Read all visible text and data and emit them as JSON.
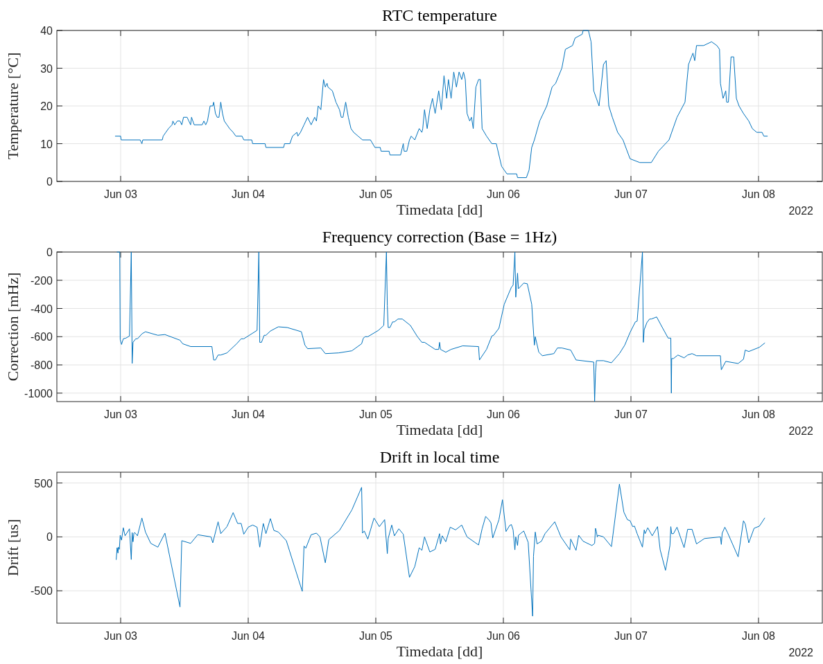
{
  "chart_data": [
    {
      "type": "line",
      "title": "RTC temperature",
      "xlabel": "Timedata [dd]",
      "ylabel": "Temperature [°C]",
      "annotations": [
        "2022"
      ],
      "grid": true,
      "color": "#0072bd",
      "xlim": [
        "2022-06-02T12:00",
        "2022-06-08T12:00"
      ],
      "xticks": [
        {
          "value": "2022-06-03",
          "label": "Jun 03"
        },
        {
          "value": "2022-06-04",
          "label": "Jun 04"
        },
        {
          "value": "2022-06-05",
          "label": "Jun 05"
        },
        {
          "value": "2022-06-06",
          "label": "Jun 06"
        },
        {
          "value": "2022-06-07",
          "label": "Jun 07"
        },
        {
          "value": "2022-06-08",
          "label": "Jun 08"
        }
      ],
      "ylim": [
        0,
        40
      ],
      "yticks": [
        0,
        10,
        20,
        30,
        40
      ],
      "x": [
        "2022-06-02T23:00",
        "2022-06-03T00:00",
        "2022-06-03T00:06",
        "2022-06-03T03:40",
        "2022-06-03T04:00",
        "2022-06-03T04:10",
        "2022-06-03T07:50",
        "2022-06-03T08:00",
        "2022-06-03T08:30",
        "2022-06-03T09:00",
        "2022-06-03T09:40",
        "2022-06-03T09:50",
        "2022-06-03T10:10",
        "2022-06-03T10:40",
        "2022-06-03T11:10",
        "2022-06-03T11:30",
        "2022-06-03T11:50",
        "2022-06-03T12:30",
        "2022-06-03T12:50",
        "2022-06-03T13:10",
        "2022-06-03T13:20",
        "2022-06-03T13:50",
        "2022-06-03T15:20",
        "2022-06-03T15:40",
        "2022-06-03T16:00",
        "2022-06-03T16:20",
        "2022-06-03T16:50",
        "2022-06-03T17:20",
        "2022-06-03T17:30",
        "2022-06-03T17:50",
        "2022-06-03T18:10",
        "2022-06-03T18:30",
        "2022-06-03T18:50",
        "2022-06-03T19:10",
        "2022-06-03T19:30",
        "2022-06-03T20:00",
        "2022-06-03T20:30",
        "2022-06-03T21:10",
        "2022-06-03T21:40",
        "2022-06-03T22:50",
        "2022-06-03T23:10",
        "2022-06-04T00:40",
        "2022-06-04T00:50",
        "2022-06-04T03:10",
        "2022-06-04T03:20",
        "2022-06-04T06:40",
        "2022-06-04T06:50",
        "2022-06-04T07:50",
        "2022-06-04T08:20",
        "2022-06-04T09:10",
        "2022-06-04T09:20",
        "2022-06-04T09:50",
        "2022-06-04T10:30",
        "2022-06-04T11:10",
        "2022-06-04T11:50",
        "2022-06-04T12:30",
        "2022-06-04T12:50",
        "2022-06-04T13:10",
        "2022-06-04T13:40",
        "2022-06-04T14:10",
        "2022-06-04T14:30",
        "2022-06-04T14:50",
        "2022-06-04T15:00",
        "2022-06-04T15:50",
        "2022-06-04T16:30",
        "2022-06-04T17:10",
        "2022-06-04T17:30",
        "2022-06-04T17:50",
        "2022-06-04T18:20",
        "2022-06-04T18:50",
        "2022-06-04T19:20",
        "2022-06-04T19:50",
        "2022-06-04T20:40",
        "2022-06-04T21:30",
        "2022-06-04T23:00",
        "2022-06-04T23:50",
        "2022-06-05T00:50",
        "2022-06-05T01:00",
        "2022-06-05T02:30",
        "2022-06-05T02:40",
        "2022-06-05T04:40",
        "2022-06-05T05:10",
        "2022-06-05T05:20",
        "2022-06-05T05:50",
        "2022-06-05T06:20",
        "2022-06-05T06:40",
        "2022-06-05T07:20",
        "2022-06-05T08:10",
        "2022-06-05T08:40",
        "2022-06-05T08:50",
        "2022-06-05T09:10",
        "2022-06-05T09:40",
        "2022-06-05T10:10",
        "2022-06-05T10:40",
        "2022-06-05T11:10",
        "2022-06-05T11:50",
        "2022-06-05T12:20",
        "2022-06-05T12:50",
        "2022-06-05T13:20",
        "2022-06-05T13:40",
        "2022-06-05T14:10",
        "2022-06-05T14:40",
        "2022-06-05T15:10",
        "2022-06-05T15:40",
        "2022-06-05T16:10",
        "2022-06-05T16:30",
        "2022-06-05T16:50",
        "2022-06-05T17:10",
        "2022-06-05T17:40",
        "2022-06-05T18:00",
        "2022-06-05T18:20",
        "2022-06-05T18:50",
        "2022-06-05T19:20",
        "2022-06-05T19:40",
        "2022-06-05T20:00",
        "2022-06-05T20:50",
        "2022-06-05T21:50",
        "2022-06-05T22:40",
        "2022-06-05T23:40",
        "2022-06-06T00:40",
        "2022-06-06T02:30",
        "2022-06-06T02:40",
        "2022-06-06T04:20",
        "2022-06-06T04:50",
        "2022-06-06T05:20",
        "2022-06-06T05:50",
        "2022-06-06T06:50",
        "2022-06-06T08:10",
        "2022-06-06T09:10",
        "2022-06-06T09:50",
        "2022-06-06T11:00",
        "2022-06-06T11:40",
        "2022-06-06T13:00",
        "2022-06-06T13:30",
        "2022-06-06T14:50",
        "2022-06-06T15:00",
        "2022-06-06T16:00",
        "2022-06-06T16:30",
        "2022-06-06T17:00",
        "2022-06-06T17:30",
        "2022-06-06T18:00",
        "2022-06-06T18:50",
        "2022-06-06T19:20",
        "2022-06-06T19:50",
        "2022-06-06T20:30",
        "2022-06-06T21:30",
        "2022-06-06T22:30",
        "2022-06-06T23:50",
        "2022-06-07T01:40",
        "2022-06-07T03:50",
        "2022-06-07T05:10",
        "2022-06-07T07:10",
        "2022-06-07T08:40",
        "2022-06-07T10:10",
        "2022-06-07T10:50",
        "2022-06-07T11:40",
        "2022-06-07T12:00",
        "2022-06-07T12:20",
        "2022-06-07T13:40",
        "2022-06-07T15:10",
        "2022-06-07T16:10",
        "2022-06-07T16:40",
        "2022-06-07T16:50",
        "2022-06-07T17:20",
        "2022-06-07T17:50",
        "2022-06-07T18:00",
        "2022-06-07T18:20",
        "2022-06-07T18:50",
        "2022-06-07T19:20",
        "2022-06-07T19:50",
        "2022-06-07T20:20",
        "2022-06-07T21:10",
        "2022-06-07T22:10",
        "2022-06-07T22:50",
        "2022-06-07T23:40",
        "2022-06-08T00:40",
        "2022-06-08T01:00",
        "2022-06-08T01:40"
      ],
      "values": [
        12,
        12,
        11,
        11,
        10,
        11,
        11,
        12,
        13,
        14,
        15,
        16,
        15,
        16,
        16,
        15,
        17,
        17,
        16,
        15,
        17,
        15,
        15,
        16,
        15,
        16,
        20,
        20,
        21,
        18,
        17,
        17,
        21,
        18,
        16,
        15,
        14,
        13,
        12,
        12,
        11,
        11,
        10,
        10,
        9,
        9,
        10,
        10,
        12,
        13,
        12,
        13,
        15,
        17,
        15,
        17,
        16,
        20,
        19,
        27,
        25,
        26,
        25,
        24,
        21,
        19,
        17,
        17,
        21,
        17,
        14,
        13,
        12,
        11,
        11,
        9,
        9,
        8,
        8,
        7,
        7,
        10,
        8,
        8,
        11,
        12,
        11,
        14,
        13,
        14,
        19,
        14,
        19,
        22,
        18,
        24,
        19,
        28,
        22,
        27,
        22,
        29,
        25,
        29,
        27,
        29,
        27,
        18,
        16,
        17,
        14,
        25,
        27,
        27,
        14,
        12,
        10,
        10,
        4,
        2,
        2,
        1,
        1,
        3,
        9,
        11,
        16,
        20,
        25,
        26,
        30,
        35,
        36,
        38,
        39,
        40,
        40,
        37,
        24,
        22,
        20,
        31,
        32,
        20,
        17,
        13,
        11,
        6,
        5,
        5,
        8,
        11,
        17,
        21,
        31,
        34,
        32,
        36,
        36,
        37,
        36,
        35,
        26,
        22,
        24,
        21,
        21,
        33,
        33,
        22,
        20,
        18,
        16,
        14,
        13,
        13,
        12,
        12
      ]
    },
    {
      "type": "line",
      "title": "Frequency correction (Base = 1Hz)",
      "xlabel": "Timedata [dd]",
      "ylabel": "Correction [mHz]",
      "annotations": [
        "2022"
      ],
      "grid": true,
      "color": "#0072bd",
      "xlim": [
        "2022-06-02T12:00",
        "2022-06-08T12:00"
      ],
      "xticks": [
        {
          "value": "2022-06-03",
          "label": "Jun 03"
        },
        {
          "value": "2022-06-04",
          "label": "Jun 04"
        },
        {
          "value": "2022-06-05",
          "label": "Jun 05"
        },
        {
          "value": "2022-06-06",
          "label": "Jun 06"
        },
        {
          "value": "2022-06-07",
          "label": "Jun 07"
        },
        {
          "value": "2022-06-08",
          "label": "Jun 08"
        }
      ],
      "ylim": [
        -1060,
        0
      ],
      "yticks": [
        -1000,
        -800,
        -600,
        -400,
        -200,
        0
      ],
      "x": [
        "2022-06-02T23:20",
        "2022-06-02T23:50",
        "2022-06-02T23:55",
        "2022-06-03T00:10",
        "2022-06-03T00:30",
        "2022-06-03T01:00",
        "2022-06-03T01:40",
        "2022-06-03T02:00",
        "2022-06-03T02:10",
        "2022-06-03T02:20",
        "2022-06-03T02:50",
        "2022-06-03T03:10",
        "2022-06-03T04:00",
        "2022-06-03T04:40",
        "2022-06-03T07:00",
        "2022-06-03T08:20",
        "2022-06-03T11:10",
        "2022-06-03T11:40",
        "2022-06-03T13:10",
        "2022-06-03T17:10",
        "2022-06-03T17:30",
        "2022-06-03T17:50",
        "2022-06-03T18:20",
        "2022-06-03T18:50",
        "2022-06-03T20:00",
        "2022-06-03T21:50",
        "2022-06-03T22:40",
        "2022-06-03T23:10",
        "2022-06-04T01:40",
        "2022-06-04T02:00",
        "2022-06-04T02:10",
        "2022-06-04T02:30",
        "2022-06-04T03:00",
        "2022-06-04T03:20",
        "2022-06-04T04:10",
        "2022-06-04T05:40",
        "2022-06-04T07:20",
        "2022-06-04T10:00",
        "2022-06-04T10:40",
        "2022-06-04T11:10",
        "2022-06-04T13:40",
        "2022-06-04T14:30",
        "2022-06-04T17:00",
        "2022-06-04T19:30",
        "2022-06-04T21:20",
        "2022-06-04T21:40",
        "2022-06-04T22:00",
        "2022-06-04T22:30",
        "2022-06-05T00:30",
        "2022-06-05T01:30",
        "2022-06-05T02:00",
        "2022-06-05T02:10",
        "2022-06-05T02:20",
        "2022-06-05T02:40",
        "2022-06-05T03:10",
        "2022-06-05T03:30",
        "2022-06-05T04:10",
        "2022-06-05T05:00",
        "2022-06-05T06:30",
        "2022-06-05T07:50",
        "2022-06-05T08:40",
        "2022-06-05T09:10",
        "2022-06-05T11:10",
        "2022-06-05T11:50",
        "2022-06-05T12:00",
        "2022-06-05T12:10",
        "2022-06-05T13:10",
        "2022-06-05T14:10",
        "2022-06-05T16:20",
        "2022-06-05T19:20",
        "2022-06-05T19:30",
        "2022-06-05T20:50",
        "2022-06-05T21:50",
        "2022-06-05T22:10",
        "2022-06-05T23:10",
        "2022-06-06T00:10",
        "2022-06-06T01:30",
        "2022-06-06T01:50",
        "2022-06-06T02:10",
        "2022-06-06T02:20",
        "2022-06-06T02:40",
        "2022-06-06T02:50",
        "2022-06-06T03:50",
        "2022-06-06T04:30",
        "2022-06-06T05:20",
        "2022-06-06T05:50",
        "2022-06-06T06:00",
        "2022-06-06T06:40",
        "2022-06-06T07:20",
        "2022-06-06T09:30",
        "2022-06-06T10:10",
        "2022-06-06T11:00",
        "2022-06-06T12:40",
        "2022-06-06T13:40",
        "2022-06-06T17:00",
        "2022-06-06T17:10",
        "2022-06-06T17:20",
        "2022-06-06T17:30",
        "2022-06-06T18:50",
        "2022-06-06T20:20",
        "2022-06-06T21:50",
        "2022-06-06T22:50",
        "2022-06-06T23:50",
        "2022-06-07T00:50",
        "2022-06-07T01:10",
        "2022-06-07T02:10",
        "2022-06-07T02:20",
        "2022-06-07T02:30",
        "2022-06-07T03:00",
        "2022-06-07T03:30",
        "2022-06-07T03:50",
        "2022-06-07T04:50",
        "2022-06-07T05:50",
        "2022-06-07T07:00",
        "2022-06-07T07:30",
        "2022-06-07T07:36",
        "2022-06-07T07:40",
        "2022-06-07T08:00",
        "2022-06-07T08:50",
        "2022-06-07T10:00",
        "2022-06-07T10:40",
        "2022-06-07T11:30",
        "2022-06-07T12:20",
        "2022-06-07T16:50",
        "2022-06-07T17:00",
        "2022-06-07T17:50",
        "2022-06-07T20:10",
        "2022-06-07T21:10",
        "2022-06-07T21:30",
        "2022-06-07T22:10",
        "2022-06-08T00:10",
        "2022-06-08T01:10"
      ],
      "values": [
        0,
        0,
        -620,
        -655,
        -615,
        -610,
        -595,
        0,
        -790,
        -640,
        -615,
        -615,
        -580,
        -565,
        -590,
        -585,
        -625,
        -650,
        -670,
        -670,
        -765,
        -765,
        -730,
        -730,
        -715,
        -650,
        -615,
        -615,
        -555,
        0,
        -640,
        -640,
        -590,
        -590,
        -560,
        -530,
        -535,
        -565,
        -660,
        -685,
        -680,
        -720,
        -715,
        -700,
        -650,
        -610,
        -600,
        -600,
        -555,
        -520,
        0,
        -380,
        -535,
        -535,
        -495,
        -495,
        -475,
        -475,
        -520,
        -600,
        -640,
        -640,
        -690,
        -690,
        -640,
        -690,
        -710,
        -690,
        -665,
        -670,
        -765,
        -690,
        -595,
        -590,
        -540,
        -370,
        -250,
        -235,
        0,
        -320,
        -150,
        -260,
        -220,
        -225,
        -370,
        -660,
        -600,
        -710,
        -735,
        -720,
        -680,
        -680,
        -695,
        -765,
        -780,
        -1060,
        -855,
        -770,
        -770,
        -785,
        -720,
        -660,
        -570,
        -495,
        -490,
        0,
        -640,
        -550,
        -500,
        -475,
        -475,
        -460,
        -530,
        -610,
        -610,
        -1000,
        -755,
        -755,
        -730,
        -750,
        -730,
        -720,
        -735,
        -735,
        -835,
        -775,
        -790,
        -760,
        -695,
        -705,
        -675,
        -645
      ]
    },
    {
      "type": "line",
      "title": "Drift in local time",
      "xlabel": "Timedata [dd]",
      "ylabel": "Drift [us]",
      "annotations": [
        "2022"
      ],
      "grid": true,
      "color": "#0072bd",
      "xlim": [
        "2022-06-02T12:00",
        "2022-06-08T12:00"
      ],
      "xticks": [
        {
          "value": "2022-06-03",
          "label": "Jun 03"
        },
        {
          "value": "2022-06-04",
          "label": "Jun 04"
        },
        {
          "value": "2022-06-05",
          "label": "Jun 05"
        },
        {
          "value": "2022-06-06",
          "label": "Jun 06"
        },
        {
          "value": "2022-06-07",
          "label": "Jun 07"
        },
        {
          "value": "2022-06-08",
          "label": "Jun 08"
        }
      ],
      "ylim": [
        -800,
        600
      ],
      "yticks": [
        -500,
        0,
        500
      ],
      "x": [
        "2022-06-02T23:10",
        "2022-06-02T23:20",
        "2022-06-02T23:30",
        "2022-06-02T23:35",
        "2022-06-02T23:45",
        "2022-06-02T23:55",
        "2022-06-03T00:10",
        "2022-06-03T00:30",
        "2022-06-03T00:50",
        "2022-06-03T01:40",
        "2022-06-03T02:00",
        "2022-06-03T02:10",
        "2022-06-03T02:20",
        "2022-06-03T02:30",
        "2022-06-03T02:40",
        "2022-06-03T03:10",
        "2022-06-03T04:00",
        "2022-06-03T04:40",
        "2022-06-03T05:40",
        "2022-06-03T07:00",
        "2022-06-03T08:20",
        "2022-06-03T11:10",
        "2022-06-03T11:30",
        "2022-06-03T13:10",
        "2022-06-03T14:30",
        "2022-06-03T17:00",
        "2022-06-03T17:20",
        "2022-06-03T18:20",
        "2022-06-03T18:50",
        "2022-06-03T20:00",
        "2022-06-03T21:10",
        "2022-06-03T22:00",
        "2022-06-03T22:40",
        "2022-06-03T23:10",
        "2022-06-04T00:00",
        "2022-06-04T00:50",
        "2022-06-04T01:40",
        "2022-06-04T02:10",
        "2022-06-04T02:50",
        "2022-06-04T03:20",
        "2022-06-04T04:10",
        "2022-06-04T04:50",
        "2022-06-04T05:40",
        "2022-06-04T07:10",
        "2022-06-04T10:10",
        "2022-06-04T10:30",
        "2022-06-04T10:50",
        "2022-06-04T11:50",
        "2022-06-04T12:50",
        "2022-06-04T13:30",
        "2022-06-04T14:30",
        "2022-06-04T15:10",
        "2022-06-04T17:10",
        "2022-06-04T19:30",
        "2022-06-04T21:20",
        "2022-06-04T21:30",
        "2022-06-04T21:50",
        "2022-06-04T22:30",
        "2022-06-04T23:40",
        "2022-06-05T00:40",
        "2022-06-05T01:40",
        "2022-06-05T02:10",
        "2022-06-05T02:20",
        "2022-06-05T03:00",
        "2022-06-05T03:30",
        "2022-06-05T04:20",
        "2022-06-05T05:10",
        "2022-06-05T06:20",
        "2022-06-05T07:20",
        "2022-06-05T08:10",
        "2022-06-05T08:40",
        "2022-06-05T09:10",
        "2022-06-05T10:10",
        "2022-06-05T11:10",
        "2022-06-05T12:00",
        "2022-06-05T12:10",
        "2022-06-05T12:30",
        "2022-06-05T13:10",
        "2022-06-05T14:00",
        "2022-06-05T15:00",
        "2022-06-05T16:10",
        "2022-06-05T17:10",
        "2022-06-05T19:20",
        "2022-06-05T20:00",
        "2022-06-05T20:40",
        "2022-06-05T21:20",
        "2022-06-05T21:40",
        "2022-06-05T22:00",
        "2022-06-05T23:10",
        "2022-06-05T23:50",
        "2022-06-06T00:30",
        "2022-06-06T01:10",
        "2022-06-06T01:30",
        "2022-06-06T01:50",
        "2022-06-06T02:10",
        "2022-06-06T02:20",
        "2022-06-06T02:40",
        "2022-06-06T02:50",
        "2022-06-06T03:50",
        "2022-06-06T04:40",
        "2022-06-06T05:30",
        "2022-06-06T05:40",
        "2022-06-06T06:00",
        "2022-06-06T06:20",
        "2022-06-06T07:10",
        "2022-06-06T07:50",
        "2022-06-06T09:40",
        "2022-06-06T10:50",
        "2022-06-06T12:30",
        "2022-06-06T12:40",
        "2022-06-06T13:40",
        "2022-06-06T14:10",
        "2022-06-06T15:00",
        "2022-06-06T16:40",
        "2022-06-06T17:10",
        "2022-06-06T17:20",
        "2022-06-06T17:30",
        "2022-06-06T17:40",
        "2022-06-06T17:50",
        "2022-06-06T18:50",
        "2022-06-06T20:20",
        "2022-06-06T21:50",
        "2022-06-06T22:40",
        "2022-06-06T23:20",
        "2022-06-06T23:50",
        "2022-06-07T00:20",
        "2022-06-07T00:40",
        "2022-06-07T01:10",
        "2022-06-07T02:10",
        "2022-06-07T02:30",
        "2022-06-07T02:40",
        "2022-06-07T03:10",
        "2022-06-07T04:00",
        "2022-06-07T05:00",
        "2022-06-07T05:30",
        "2022-06-07T06:30",
        "2022-06-07T07:00",
        "2022-06-07T07:20",
        "2022-06-07T07:30",
        "2022-06-07T07:40",
        "2022-06-07T08:00",
        "2022-06-07T08:40",
        "2022-06-07T10:00",
        "2022-06-07T10:40",
        "2022-06-07T11:30",
        "2022-06-07T12:20",
        "2022-06-07T13:50",
        "2022-06-07T16:50",
        "2022-06-07T17:00",
        "2022-06-07T17:10",
        "2022-06-07T17:40",
        "2022-06-07T18:10",
        "2022-06-07T20:10",
        "2022-06-07T21:10",
        "2022-06-07T21:30",
        "2022-06-07T22:10",
        "2022-06-07T23:10",
        "2022-06-08T00:10",
        "2022-06-08T01:10"
      ],
      "values": [
        -210,
        -100,
        -150,
        -95,
        -115,
        15,
        -30,
        85,
        10,
        75,
        -210,
        40,
        -45,
        35,
        40,
        10,
        175,
        45,
        -60,
        -95,
        35,
        -650,
        -35,
        -60,
        20,
        0,
        -55,
        140,
        30,
        95,
        225,
        125,
        125,
        25,
        90,
        110,
        90,
        -95,
        125,
        30,
        170,
        60,
        45,
        -35,
        -505,
        -85,
        -105,
        20,
        35,
        0,
        -240,
        -25,
        60,
        250,
        460,
        35,
        55,
        -20,
        175,
        95,
        160,
        -155,
        -15,
        110,
        10,
        75,
        25,
        -375,
        -275,
        -100,
        -125,
        0,
        -140,
        -115,
        30,
        -65,
        10,
        -45,
        90,
        65,
        110,
        0,
        -75,
        75,
        190,
        155,
        130,
        -10,
        160,
        345,
        50,
        105,
        115,
        65,
        -120,
        0,
        -80,
        15,
        55,
        -50,
        -735,
        -180,
        45,
        -65,
        -40,
        30,
        140,
        0,
        -120,
        -20,
        -125,
        15,
        -40,
        -80,
        -60,
        80,
        50,
        0,
        15,
        0,
        -90,
        490,
        230,
        160,
        150,
        95,
        100,
        30,
        -95,
        65,
        30,
        85,
        10,
        95,
        -120,
        -310,
        -175,
        -80,
        95,
        30,
        30,
        90,
        -100,
        70,
        70,
        -65,
        -15,
        0,
        -70,
        35,
        90,
        40,
        -185,
        150,
        120,
        -55,
        80,
        100,
        175
      ]
    }
  ]
}
